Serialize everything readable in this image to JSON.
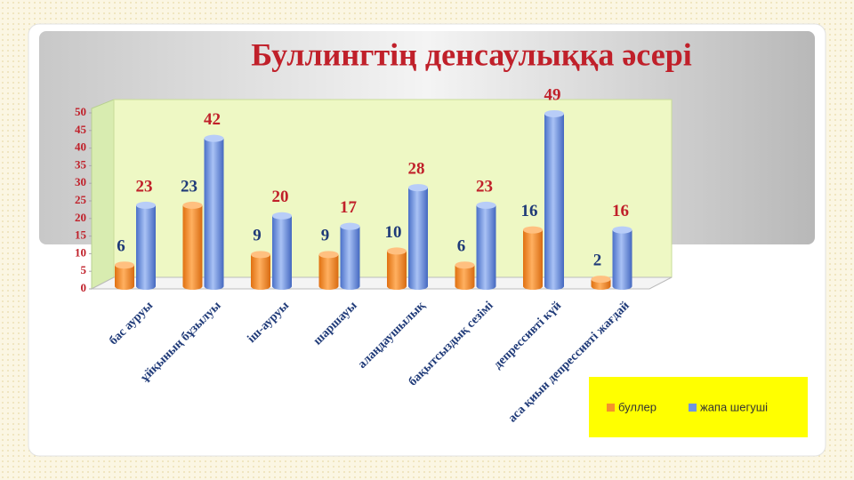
{
  "chart_data": {
    "type": "bar",
    "title": "Буллингтің денсаулыққа әсері",
    "categories": [
      "бас ауруы",
      "ұйқының бұзылуы",
      "іш-ауруы",
      "шаршауы",
      "алаңдаушылық",
      "бақытсыздық сезімі",
      "депрессивті күй",
      "аса қиын депрессивті жағдай"
    ],
    "series": [
      {
        "name": "буллер",
        "color": "#f5922a",
        "values": [
          6,
          23,
          9,
          9,
          10,
          6,
          16,
          2
        ]
      },
      {
        "name": "жапа шегуші",
        "color": "#6f95e0",
        "values": [
          23,
          42,
          20,
          17,
          28,
          23,
          49,
          16
        ]
      }
    ],
    "ylim": [
      0,
      50
    ],
    "yticks": [
      0,
      5,
      10,
      15,
      20,
      25,
      30,
      35,
      40,
      45,
      50
    ],
    "legend": "bottom-right"
  }
}
